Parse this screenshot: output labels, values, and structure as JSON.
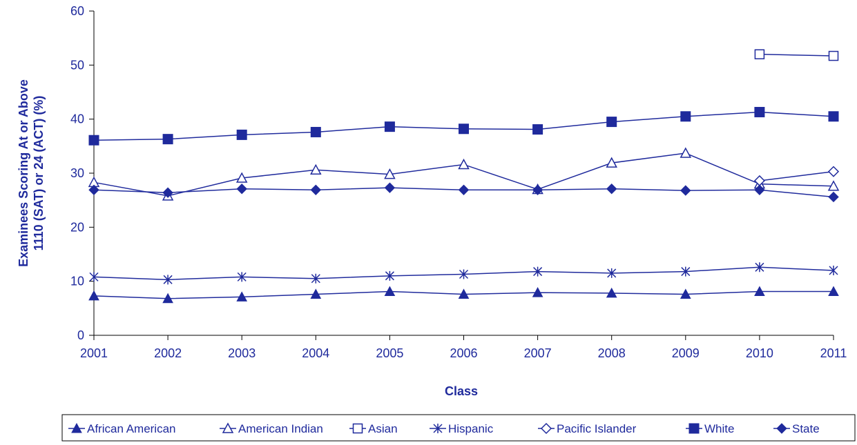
{
  "chart_data": {
    "type": "line",
    "title": "",
    "xlabel": "Class",
    "ylabel_lines": [
      "Examinees Scoring At or Above",
      "1110 (SAT) or 24 (ACT) (%)"
    ],
    "x": [
      "2001",
      "2002",
      "2003",
      "2004",
      "2005",
      "2006",
      "2007",
      "2008",
      "2009",
      "2010",
      "2011"
    ],
    "ylim": [
      0,
      60
    ],
    "yticks": [
      0,
      10,
      20,
      30,
      40,
      50,
      60
    ],
    "grid": false,
    "legend_position": "bottom",
    "color": "#1f2a9c",
    "series": [
      {
        "name": "African American",
        "marker": "triangle-filled",
        "values": [
          7.3,
          6.8,
          7.1,
          7.6,
          8.1,
          7.6,
          7.9,
          7.8,
          7.6,
          8.1,
          8.1
        ]
      },
      {
        "name": "American Indian",
        "marker": "triangle-open",
        "values": [
          28.3,
          25.8,
          29.1,
          30.6,
          29.8,
          31.6,
          27.0,
          31.9,
          33.7,
          28.0,
          27.6
        ]
      },
      {
        "name": "Asian",
        "marker": "square-open",
        "values": [
          null,
          null,
          null,
          null,
          null,
          null,
          null,
          null,
          null,
          52.0,
          51.7
        ]
      },
      {
        "name": "Hispanic",
        "marker": "asterisk",
        "values": [
          10.8,
          10.3,
          10.8,
          10.5,
          11.0,
          11.3,
          11.8,
          11.5,
          11.8,
          12.6,
          12.0
        ]
      },
      {
        "name": "Pacific Islander",
        "marker": "diamond-open",
        "values": [
          null,
          null,
          null,
          null,
          null,
          null,
          null,
          null,
          null,
          28.6,
          30.3
        ]
      },
      {
        "name": "White",
        "marker": "square-filled",
        "values": [
          36.1,
          36.3,
          37.1,
          37.6,
          38.6,
          38.2,
          38.1,
          39.5,
          40.5,
          41.3,
          40.5
        ]
      },
      {
        "name": "State",
        "marker": "diamond-filled",
        "values": [
          26.9,
          26.4,
          27.1,
          26.9,
          27.3,
          26.9,
          26.9,
          27.1,
          26.8,
          26.9,
          25.6
        ]
      }
    ]
  }
}
